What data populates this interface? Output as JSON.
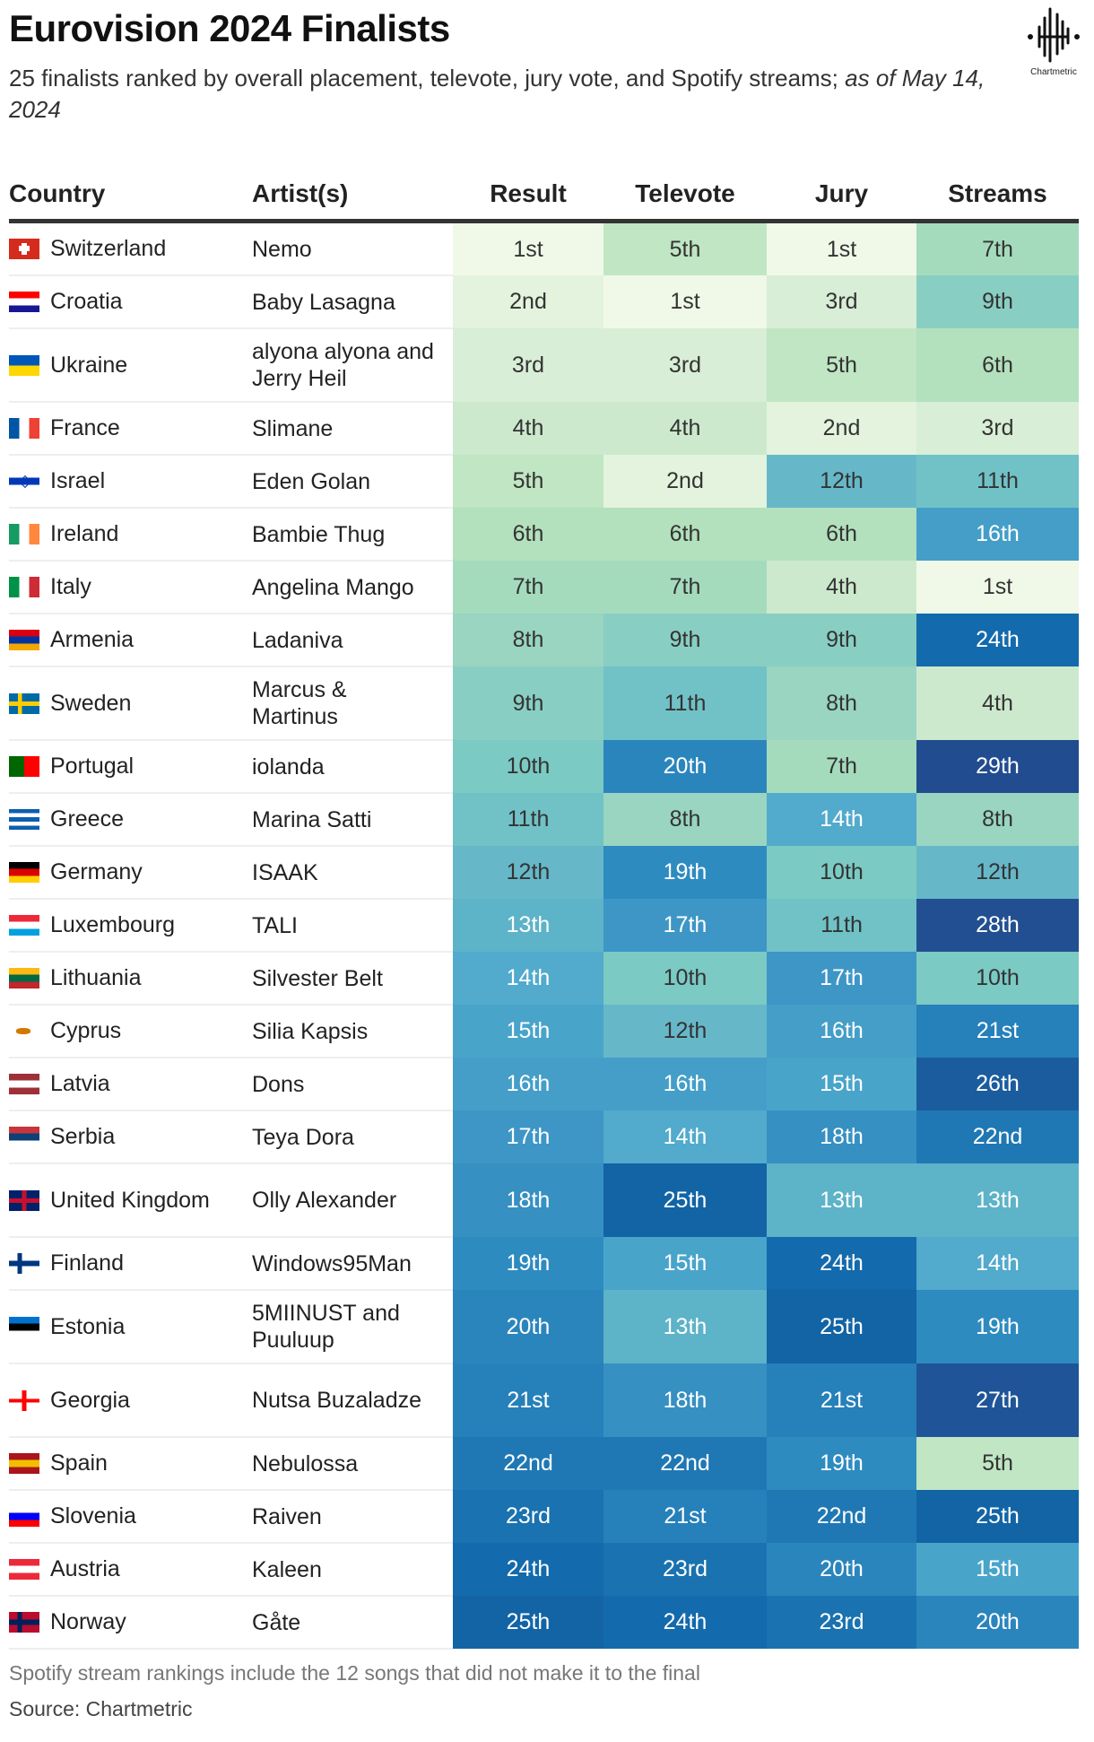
{
  "title": "Eurovision 2024 Finalists",
  "subtitle": "25 finalists ranked by overall placement, televote, jury vote, and Spotify streams;",
  "subtitle_date": "as of May 14, 2024",
  "logo": "Chartmetric",
  "footer_note": "Spotify stream rankings include the 12 songs that did not make it to the final",
  "source": "Source: Chartmetric",
  "chart_data": {
    "type": "table",
    "columns": [
      "Country",
      "Artist(s)",
      "Result",
      "Televote",
      "Jury",
      "Streams"
    ],
    "rows": [
      {
        "country": "Switzerland",
        "artist": "Nemo",
        "result": "1st",
        "televote": "5th",
        "jury": "1st",
        "streams": "7th",
        "flag": [
          "#d52b1e"
        ]
      },
      {
        "country": "Croatia",
        "artist": "Baby Lasagna",
        "result": "2nd",
        "televote": "1st",
        "jury": "3rd",
        "streams": "9th",
        "flag": [
          "#ff0000",
          "#ffffff",
          "#171796"
        ]
      },
      {
        "country": "Ukraine",
        "artist": "alyona alyona and Jerry Heil",
        "result": "3rd",
        "televote": "3rd",
        "jury": "5th",
        "streams": "6th",
        "flag": [
          "#0057b7",
          "#ffd700"
        ]
      },
      {
        "country": "France",
        "artist": "Slimane",
        "result": "4th",
        "televote": "4th",
        "jury": "2nd",
        "streams": "3rd",
        "flag": [
          "#0055a4",
          "#ffffff",
          "#ef4135"
        ],
        "vertical": true
      },
      {
        "country": "Israel",
        "artist": "Eden Golan",
        "result": "5th",
        "televote": "2nd",
        "jury": "12th",
        "streams": "11th",
        "flag": [
          "#ffffff",
          "#0038b8",
          "#ffffff"
        ]
      },
      {
        "country": "Ireland",
        "artist": "Bambie Thug",
        "result": "6th",
        "televote": "6th",
        "jury": "6th",
        "streams": "16th",
        "flag": [
          "#169b62",
          "#ffffff",
          "#ff883e"
        ],
        "vertical": true
      },
      {
        "country": "Italy",
        "artist": "Angelina Mango",
        "result": "7th",
        "televote": "7th",
        "jury": "4th",
        "streams": "1st",
        "flag": [
          "#009246",
          "#ffffff",
          "#ce2b37"
        ],
        "vertical": true
      },
      {
        "country": "Armenia",
        "artist": "Ladaniva",
        "result": "8th",
        "televote": "9th",
        "jury": "9th",
        "streams": "24th",
        "flag": [
          "#d90012",
          "#0033a0",
          "#f2a800"
        ]
      },
      {
        "country": "Sweden",
        "artist": "Marcus & Martinus",
        "result": "9th",
        "televote": "11th",
        "jury": "8th",
        "streams": "4th",
        "flag": [
          "#006aa7",
          "#fecc00"
        ]
      },
      {
        "country": "Portugal",
        "artist": "iolanda",
        "result": "10th",
        "televote": "20th",
        "jury": "7th",
        "streams": "29th",
        "flag": [
          "#006600",
          "#ff0000"
        ],
        "vertical": true
      },
      {
        "country": "Greece",
        "artist": "Marina Satti",
        "result": "11th",
        "televote": "8th",
        "jury": "14th",
        "streams": "8th",
        "flag": [
          "#0d5eaf",
          "#ffffff",
          "#0d5eaf",
          "#ffffff",
          "#0d5eaf"
        ]
      },
      {
        "country": "Germany",
        "artist": "ISAAK",
        "result": "12th",
        "televote": "19th",
        "jury": "10th",
        "streams": "12th",
        "flag": [
          "#000000",
          "#dd0000",
          "#ffce00"
        ]
      },
      {
        "country": "Luxembourg",
        "artist": "TALI",
        "result": "13th",
        "televote": "17th",
        "jury": "11th",
        "streams": "28th",
        "flag": [
          "#ed2939",
          "#ffffff",
          "#00a1de"
        ]
      },
      {
        "country": "Lithuania",
        "artist": "Silvester Belt",
        "result": "14th",
        "televote": "10th",
        "jury": "17th",
        "streams": "10th",
        "flag": [
          "#fdb913",
          "#006a44",
          "#c1272d"
        ]
      },
      {
        "country": "Cyprus",
        "artist": "Silia Kapsis",
        "result": "15th",
        "televote": "12th",
        "jury": "16th",
        "streams": "21st",
        "flag": [
          "#ffffff"
        ]
      },
      {
        "country": "Latvia",
        "artist": "Dons",
        "result": "16th",
        "televote": "16th",
        "jury": "15th",
        "streams": "26th",
        "flag": [
          "#9e3039",
          "#ffffff",
          "#9e3039"
        ]
      },
      {
        "country": "Serbia",
        "artist": "Teya Dora",
        "result": "17th",
        "televote": "14th",
        "jury": "18th",
        "streams": "22nd",
        "flag": [
          "#c6363c",
          "#0c4076",
          "#ffffff"
        ]
      },
      {
        "country": "United Kingdom",
        "artist": "Olly Alexander",
        "result": "18th",
        "televote": "25th",
        "jury": "13th",
        "streams": "13th",
        "flag": [
          "#012169",
          "#c8102e"
        ]
      },
      {
        "country": "Finland",
        "artist": "Windows95Man",
        "result": "19th",
        "televote": "15th",
        "jury": "24th",
        "streams": "14th",
        "flag": [
          "#ffffff",
          "#003580"
        ]
      },
      {
        "country": "Estonia",
        "artist": "5MIINUST and Puuluup",
        "result": "20th",
        "televote": "13th",
        "jury": "25th",
        "streams": "19th",
        "flag": [
          "#0072ce",
          "#000000",
          "#ffffff"
        ]
      },
      {
        "country": "Georgia",
        "artist": "Nutsa Buzaladze",
        "result": "21st",
        "televote": "18th",
        "jury": "21st",
        "streams": "27th",
        "flag": [
          "#ffffff",
          "#ff0000"
        ]
      },
      {
        "country": "Spain",
        "artist": "Nebulossa",
        "result": "22nd",
        "televote": "22nd",
        "jury": "19th",
        "streams": "5th",
        "flag": [
          "#aa151b",
          "#f1bf00",
          "#aa151b"
        ]
      },
      {
        "country": "Slovenia",
        "artist": "Raiven",
        "result": "23rd",
        "televote": "21st",
        "jury": "22nd",
        "streams": "25th",
        "flag": [
          "#ffffff",
          "#0000ff",
          "#ff0000"
        ]
      },
      {
        "country": "Austria",
        "artist": "Kaleen",
        "result": "24th",
        "televote": "23rd",
        "jury": "20th",
        "streams": "15th",
        "flag": [
          "#ed2939",
          "#ffffff",
          "#ed2939"
        ]
      },
      {
        "country": "Norway",
        "artist": "Gåte",
        "result": "25th",
        "televote": "24th",
        "jury": "23rd",
        "streams": "20th",
        "flag": [
          "#ba0c2f",
          "#00205b"
        ]
      }
    ],
    "color_scale": {
      "low_rank": "#f0f9e8",
      "mid_rank": "#7bcac4",
      "high_rank": "#214c8f"
    }
  }
}
